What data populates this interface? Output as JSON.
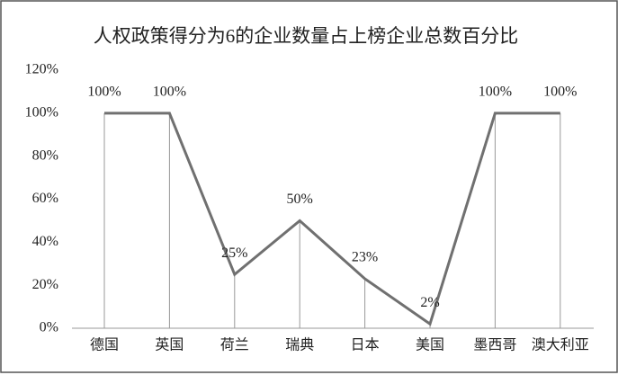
{
  "chart_data": {
    "type": "line",
    "title": "人权政策得分为6的企业数量占上榜企业总数百分比",
    "categories": [
      "德国",
      "英国",
      "荷兰",
      "瑞典",
      "日本",
      "美国",
      "墨西哥",
      "澳大利亚"
    ],
    "values": [
      100,
      100,
      25,
      50,
      23,
      2,
      100,
      100
    ],
    "value_labels": [
      "100%",
      "100%",
      "25%",
      "50%",
      "23%",
      "2%",
      "100%",
      "100%"
    ],
    "color": "#707070",
    "ylim": [
      0,
      120
    ],
    "yticks": [
      {
        "value": 0,
        "label": "0%"
      },
      {
        "value": 20,
        "label": "20%"
      },
      {
        "value": 40,
        "label": "40%"
      },
      {
        "value": 60,
        "label": "60%"
      },
      {
        "value": 80,
        "label": "80%"
      },
      {
        "value": 100,
        "label": "100%"
      },
      {
        "value": 120,
        "label": "120%"
      }
    ]
  }
}
